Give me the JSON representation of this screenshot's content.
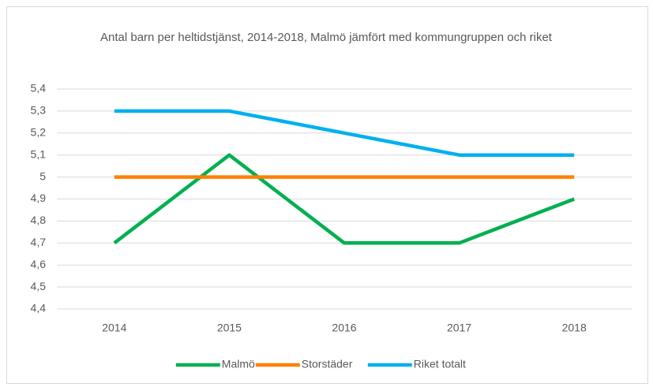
{
  "chart_data": {
    "type": "line",
    "title": "Antal barn per heltidstjänst, 2014-2018, Malmö jämfört med kommungruppen och riket",
    "categories": [
      "2014",
      "2015",
      "2016",
      "2017",
      "2018"
    ],
    "series": [
      {
        "name": "Malmö",
        "color": "#00b050",
        "values": [
          4.7,
          5.1,
          4.7,
          4.7,
          4.9
        ]
      },
      {
        "name": "Storstäder",
        "color": "#ff7f00",
        "values": [
          5,
          5,
          5,
          5,
          5
        ]
      },
      {
        "name": "Riket totalt",
        "color": "#00b0f0",
        "values": [
          5.3,
          5.3,
          5.2,
          5.1,
          5.1
        ]
      }
    ],
    "ylim": [
      4.4,
      5.4
    ],
    "yticks": [
      {
        "value": 4.4,
        "label": "4,4"
      },
      {
        "value": 4.5,
        "label": "4,5"
      },
      {
        "value": 4.6,
        "label": "4,6"
      },
      {
        "value": 4.7,
        "label": "4,7"
      },
      {
        "value": 4.8,
        "label": "4,8"
      },
      {
        "value": 4.9,
        "label": "4,9"
      },
      5,
      {
        "value": 5.1,
        "label": "5,1"
      },
      {
        "value": 5.2,
        "label": "5,2"
      },
      {
        "value": 5.3,
        "label": "5,3"
      },
      {
        "value": 5.4,
        "label": "5,4"
      }
    ],
    "grid": true,
    "legend": "bottom"
  }
}
